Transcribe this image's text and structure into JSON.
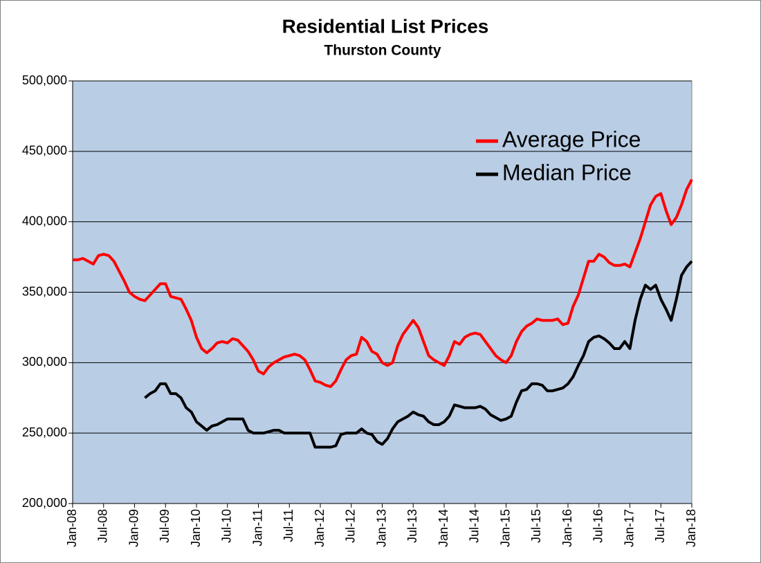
{
  "chart_data": {
    "type": "line",
    "title": "Residential List Prices",
    "subtitle": "Thurston County",
    "categories": [
      "Jan-08",
      null,
      null,
      null,
      null,
      null,
      "Jul-08",
      null,
      null,
      null,
      null,
      null,
      "Jan-09",
      null,
      null,
      null,
      null,
      null,
      "Jul-09",
      null,
      null,
      null,
      null,
      null,
      "Jan-10",
      null,
      null,
      null,
      null,
      null,
      "Jul-10",
      null,
      null,
      null,
      null,
      null,
      "Jan-11",
      null,
      null,
      null,
      null,
      null,
      "Jul-11",
      null,
      null,
      null,
      null,
      null,
      "Jan-12",
      null,
      null,
      null,
      null,
      null,
      "Jul-12",
      null,
      null,
      null,
      null,
      null,
      "Jan-13",
      null,
      null,
      null,
      null,
      null,
      "Jul-13",
      null,
      null,
      null,
      null,
      null,
      "Jan-14",
      null,
      null,
      null,
      null,
      null,
      "Jul-14",
      null,
      null,
      null,
      null,
      null,
      "Jan-15",
      null,
      null,
      null,
      null,
      null,
      "Jul-15",
      null,
      null,
      null,
      null,
      null,
      "Jan-16",
      null,
      null,
      null,
      null,
      null,
      "Jul-16",
      null,
      null,
      null,
      null,
      null,
      "Jan-17",
      null,
      null,
      null,
      null,
      null,
      "Jul-17",
      null,
      null,
      null,
      null,
      null,
      "Jan-18"
    ],
    "series": [
      {
        "name": "Average Price",
        "color": "#ff0000",
        "values": [
          373000,
          373000,
          374000,
          372000,
          370000,
          376000,
          377000,
          376000,
          372000,
          365000,
          358000,
          350000,
          347000,
          345000,
          344000,
          348000,
          352000,
          356000,
          356000,
          347000,
          346000,
          345000,
          338000,
          330000,
          318000,
          310000,
          307000,
          310000,
          314000,
          315000,
          314000,
          317000,
          316000,
          312000,
          308000,
          302000,
          294000,
          292000,
          297000,
          300000,
          302000,
          304000,
          305000,
          306000,
          305000,
          302000,
          295000,
          287000,
          286000,
          284000,
          283000,
          287000,
          295000,
          302000,
          305000,
          306000,
          318000,
          315000,
          308000,
          306000,
          300000,
          298000,
          300000,
          312000,
          320000,
          325000,
          330000,
          325000,
          315000,
          305000,
          302000,
          300000,
          298000,
          305000,
          315000,
          313000,
          318000,
          320000,
          321000,
          320000,
          315000,
          310000,
          305000,
          302000,
          300000,
          305000,
          315000,
          322000,
          326000,
          328000,
          331000,
          330000,
          330000,
          330000,
          331000,
          327000,
          328000,
          340000,
          348000,
          360000,
          372000,
          372000,
          377000,
          375000,
          371000,
          369000,
          369000,
          370000,
          368000,
          378000,
          388000,
          400000,
          412000,
          418000,
          420000,
          408000,
          398000,
          403000,
          412000,
          423000,
          430000
        ]
      },
      {
        "name": "Median Price",
        "color": "#000000",
        "values": [
          null,
          null,
          null,
          null,
          null,
          null,
          null,
          null,
          null,
          null,
          null,
          null,
          null,
          null,
          275000,
          278000,
          280000,
          285000,
          285000,
          278000,
          278000,
          275000,
          268000,
          265000,
          258000,
          255000,
          252000,
          255000,
          256000,
          258000,
          260000,
          260000,
          260000,
          260000,
          252000,
          250000,
          250000,
          250000,
          251000,
          252000,
          252000,
          250000,
          250000,
          250000,
          250000,
          250000,
          250000,
          240000,
          240000,
          240000,
          240000,
          241000,
          249000,
          250000,
          250000,
          250000,
          253000,
          250000,
          249000,
          244000,
          242000,
          246000,
          253000,
          258000,
          260000,
          262000,
          265000,
          263000,
          262000,
          258000,
          256000,
          256000,
          258000,
          262000,
          270000,
          269000,
          268000,
          268000,
          268000,
          269000,
          267000,
          263000,
          261000,
          259000,
          260000,
          262000,
          272000,
          280000,
          281000,
          285000,
          285000,
          284000,
          280000,
          280000,
          281000,
          282000,
          285000,
          290000,
          298000,
          305000,
          315000,
          318000,
          319000,
          317000,
          314000,
          310000,
          310000,
          315000,
          310000,
          330000,
          345000,
          355000,
          352000,
          355000,
          345000,
          338000,
          330000,
          345000,
          362000,
          368000,
          372000
        ]
      }
    ],
    "ylim": [
      200000,
      500000
    ],
    "yticks": [
      {
        "value": 200000,
        "label": "200,000"
      },
      {
        "value": 250000,
        "label": "250,000"
      },
      {
        "value": 300000,
        "label": "300,000"
      },
      {
        "value": 350000,
        "label": "350,000"
      },
      {
        "value": 400000,
        "label": "400,000"
      },
      {
        "value": 450000,
        "label": "450,000"
      },
      {
        "value": 500000,
        "label": "500,000"
      }
    ],
    "grid": true,
    "legend": "upper-right",
    "plot_background": "#b9cde5"
  }
}
